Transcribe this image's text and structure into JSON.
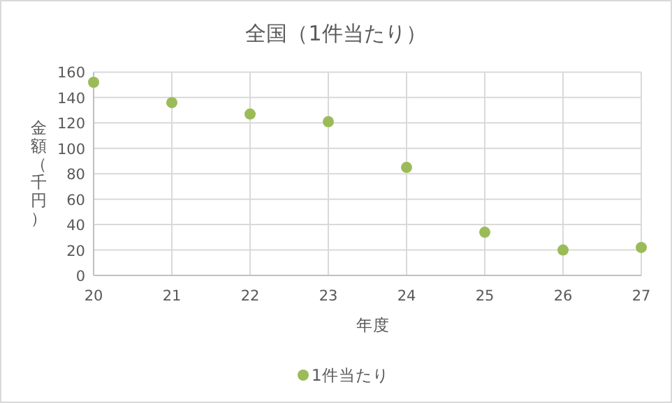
{
  "chart_data": {
    "type": "scatter",
    "title": "全国（1件当たり）",
    "xlabel": "年度",
    "ylabel": "金額（千円）",
    "x": [
      20,
      21,
      22,
      23,
      24,
      25,
      26,
      27
    ],
    "series": [
      {
        "name": "1件当たり",
        "color": "#9bbb59",
        "values": [
          152,
          136,
          127,
          121,
          85,
          34,
          20,
          22
        ]
      }
    ],
    "xlim": [
      20,
      27
    ],
    "xticks": [
      20,
      21,
      22,
      23,
      24,
      25,
      26,
      27
    ],
    "ylim": [
      0,
      160
    ],
    "yticks": [
      0,
      20,
      40,
      60,
      80,
      100,
      120,
      140,
      160
    ],
    "grid": true,
    "legend": "bottom",
    "marker": "circle"
  }
}
